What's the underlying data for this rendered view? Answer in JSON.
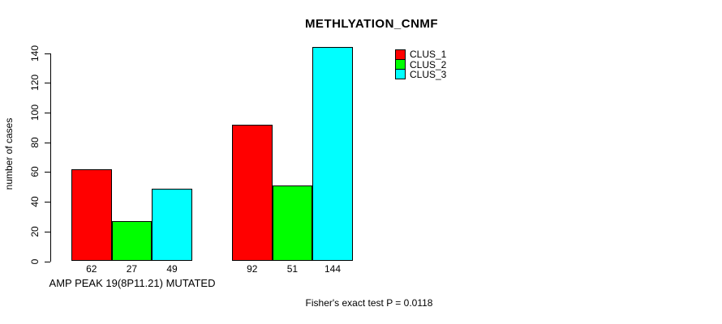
{
  "chart_data": {
    "type": "bar",
    "title": "METHLYATION_CNMF",
    "ylabel": "number of cases",
    "xlabel": "AMP PEAK 19(8P11.21) MUTATED",
    "ylim": [
      0,
      140
    ],
    "yticks": [
      0,
      20,
      40,
      60,
      80,
      100,
      120,
      140
    ],
    "grid": false,
    "legend_position": "top-right",
    "categories": [
      "AMP PEAK 19(8P11.21) MUTATED",
      ""
    ],
    "series": [
      {
        "name": "CLUS_1",
        "color": "#ff0000",
        "values": [
          62,
          92
        ]
      },
      {
        "name": "CLUS_2",
        "color": "#00ff00",
        "values": [
          27,
          51
        ]
      },
      {
        "name": "CLUS_3",
        "color": "#00ffff",
        "values": [
          49,
          144
        ]
      }
    ],
    "bar_labels": [
      [
        "62",
        "27",
        "49"
      ],
      [
        "92",
        "51",
        "144"
      ]
    ],
    "annotation": "Fisher's exact test P = 0.0118",
    "colors": {
      "background": "#ffffff",
      "axis": "#000000",
      "text": "#000000",
      "bar_border": "#000000"
    }
  }
}
